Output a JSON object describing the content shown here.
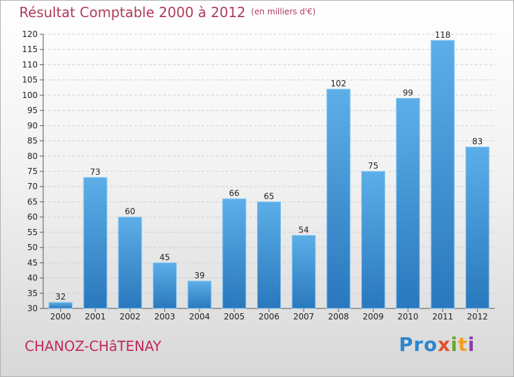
{
  "header": {
    "title": "Résultat Comptable 2000 à 2012",
    "unit": "(en milliers d'€)"
  },
  "footer": {
    "commune": "CHANOZ-CHâTENAY",
    "logo_parts": [
      "Pro",
      "x",
      "i",
      "t",
      "i"
    ]
  },
  "colors": {
    "bar_top": "#5caee8",
    "bar_bottom": "#2a78bd",
    "grid": "#d0d0d0",
    "title": "#b03a5b"
  },
  "chart_data": {
    "type": "bar",
    "title": "Résultat Comptable 2000 à 2012",
    "subtitle": "(en milliers d'€)",
    "xlabel": "",
    "ylabel": "",
    "categories": [
      "2000",
      "2001",
      "2002",
      "2003",
      "2004",
      "2005",
      "2006",
      "2007",
      "2008",
      "2009",
      "2010",
      "2011",
      "2012"
    ],
    "values": [
      32,
      73,
      60,
      45,
      39,
      66,
      65,
      54,
      102,
      75,
      99,
      118,
      83
    ],
    "ylim": [
      30,
      120
    ],
    "yticks": [
      30,
      35,
      40,
      45,
      50,
      55,
      60,
      65,
      70,
      75,
      80,
      85,
      90,
      95,
      100,
      105,
      110,
      115,
      120
    ],
    "grid": true,
    "data_labels": true
  }
}
